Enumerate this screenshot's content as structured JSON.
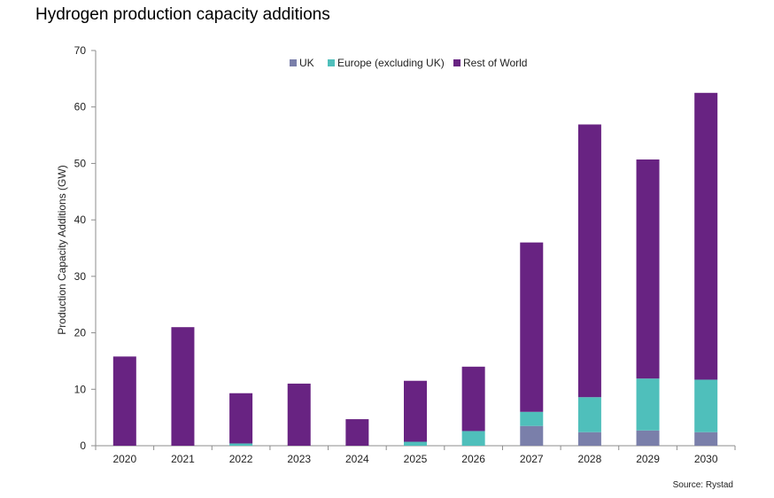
{
  "chart_data": {
    "type": "bar",
    "stacked": true,
    "title": "Hydrogen production capacity additions",
    "xlabel": "",
    "ylabel": "Production Capacity Additions (GW)",
    "ylim": [
      0,
      70
    ],
    "yticks": [
      0,
      10,
      20,
      30,
      40,
      50,
      60,
      70
    ],
    "grid": false,
    "legend_position": "top-center",
    "categories": [
      "2020",
      "2021",
      "2022",
      "2023",
      "2024",
      "2025",
      "2026",
      "2027",
      "2028",
      "2029",
      "2030"
    ],
    "series": [
      {
        "name": "UK",
        "color": "#7a7faa",
        "values": [
          0,
          0,
          0,
          0,
          0,
          0,
          0,
          3.5,
          2.4,
          2.7,
          2.4
        ]
      },
      {
        "name": "Europe (excluding UK)",
        "color": "#4fbfbb",
        "values": [
          0,
          0,
          0.4,
          0,
          0,
          0.7,
          2.6,
          2.5,
          6.2,
          9.2,
          9.3
        ]
      },
      {
        "name": "Rest of World",
        "color": "#682382",
        "values": [
          15.8,
          21.0,
          8.9,
          11.0,
          4.7,
          10.8,
          11.4,
          30.0,
          48.3,
          38.8,
          50.8
        ]
      }
    ],
    "source": "Source: Rystad"
  }
}
